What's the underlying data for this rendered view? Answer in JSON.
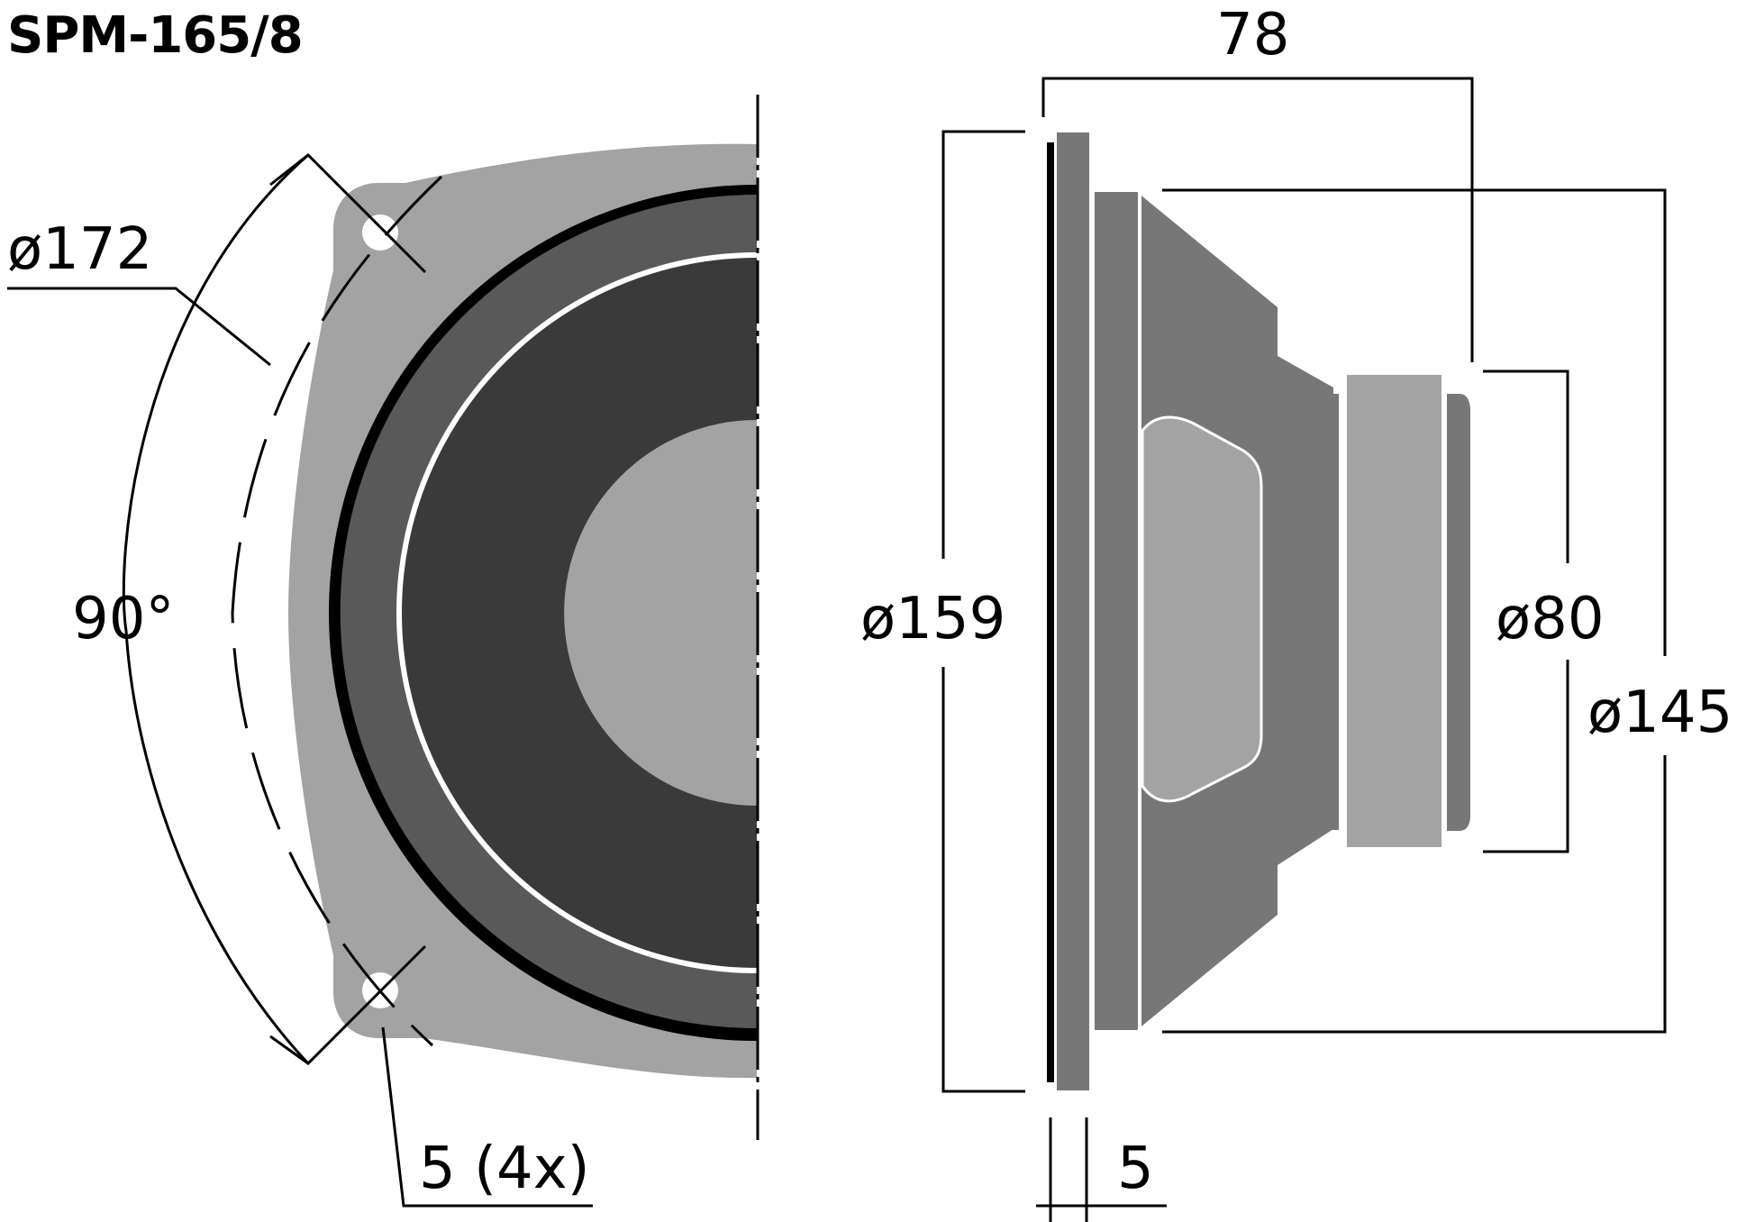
{
  "title": "SPM-165/8",
  "dimensions": {
    "depth": "78",
    "front_diameter": "ø172",
    "frame_diameter": "ø159",
    "magnet_diameter": "ø80",
    "cone_diameter": "ø145",
    "mounting_angle": "90°",
    "mounting_holes": "5 (4x)",
    "flange_thickness": "5"
  },
  "colors": {
    "frame": "#a3a3a3",
    "surround": "#595959",
    "cone": "#3a3a3a",
    "basket": "#777777",
    "dust_cap": "#a3a3a3",
    "line": "#000000",
    "background": "#ffffff"
  }
}
